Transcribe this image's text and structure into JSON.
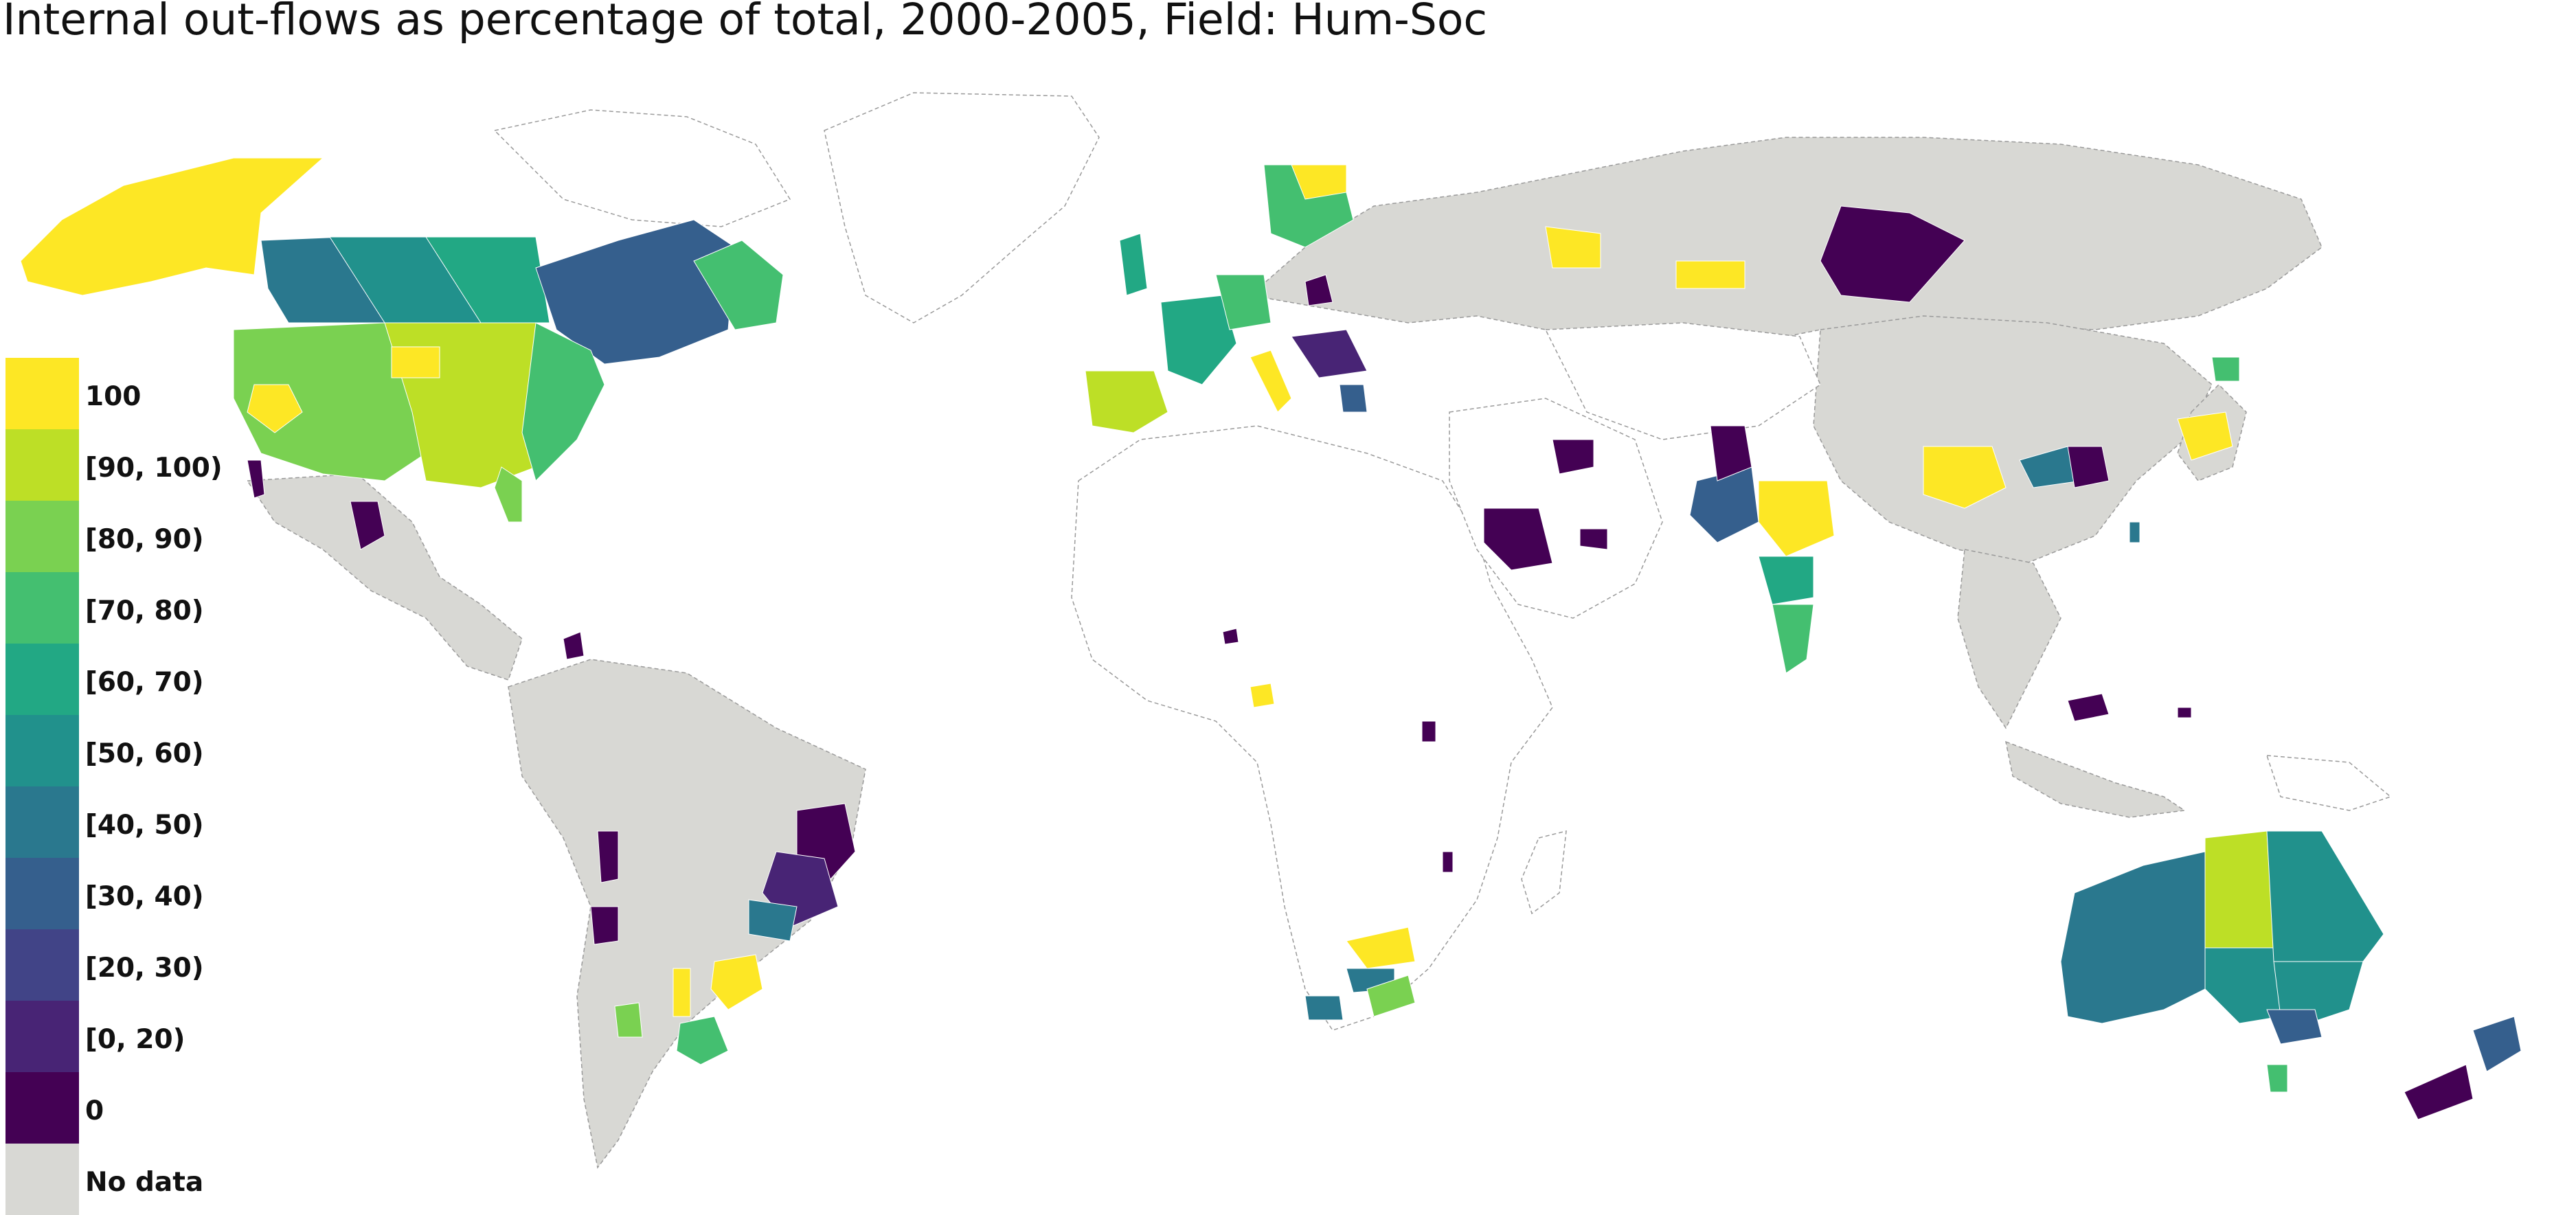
{
  "title": "Internal out-flows as percentage of total, 2000-2005, Field: Hum-Soc",
  "legend": {
    "items": [
      {
        "label": "100",
        "color": "#fde725"
      },
      {
        "label": "[90, 100)",
        "color": "#bddf26"
      },
      {
        "label": "[80, 90)",
        "color": "#7ad151"
      },
      {
        "label": "[70, 80)",
        "color": "#44bf70"
      },
      {
        "label": "[60, 70)",
        "color": "#22a884"
      },
      {
        "label": "[50, 60)",
        "color": "#21918c"
      },
      {
        "label": "[40, 50)",
        "color": "#2a788e"
      },
      {
        "label": "[30, 40)",
        "color": "#355f8d"
      },
      {
        "label": "[20, 30)",
        "color": "#414487"
      },
      {
        "label": "[0, 20)",
        "color": "#482475"
      },
      {
        "label": "0",
        "color": "#440154"
      },
      {
        "label": "No data",
        "color": "#d8d8d4"
      }
    ]
  },
  "map": {
    "projection": "equirectangular",
    "no_data_color": "#d8d8d4",
    "background_country_color": "#ffffff",
    "border_color": "#999999"
  }
}
